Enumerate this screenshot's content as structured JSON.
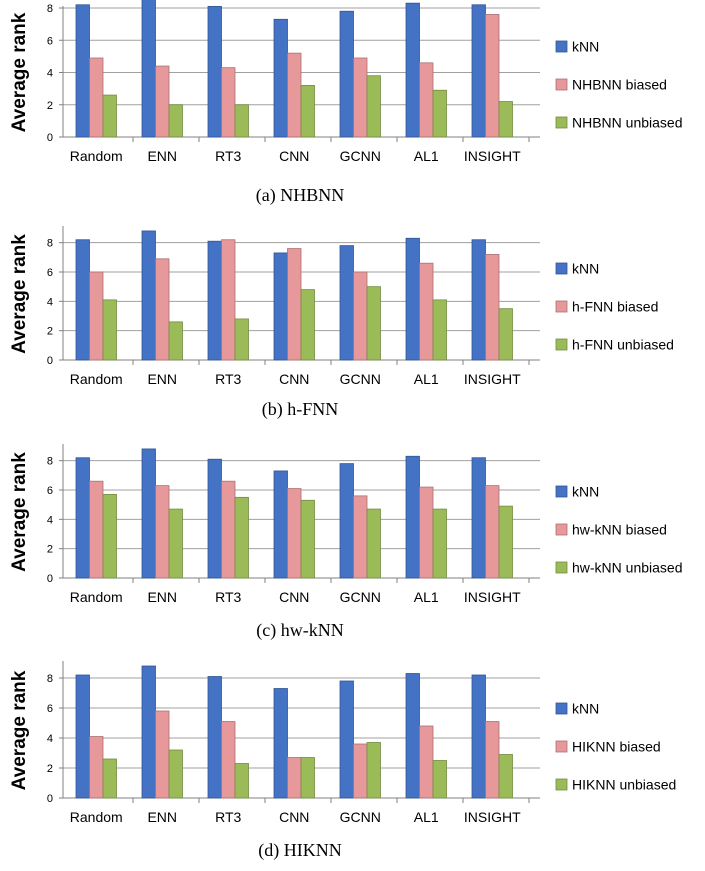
{
  "chart_data": [
    {
      "type": "bar",
      "caption": "(a) NHBNN",
      "ylabel": "Average rank",
      "ylim": [
        0,
        8
      ],
      "yticks": [
        0,
        2,
        4,
        6,
        8
      ],
      "categories": [
        "Random",
        "ENN",
        "RT3",
        "CNN",
        "GCNN",
        "AL1",
        "INSIGHT"
      ],
      "series": [
        {
          "name": "kNN",
          "color": "#4472C4",
          "values": [
            8.2,
            8.8,
            8.1,
            7.3,
            7.8,
            8.3,
            8.2
          ]
        },
        {
          "name": "NHBNN biased",
          "color": "#E6989A",
          "values": [
            4.9,
            4.4,
            4.3,
            5.2,
            4.9,
            4.6,
            7.6
          ]
        },
        {
          "name": "NHBNN unbiased",
          "color": "#9BBB59",
          "values": [
            2.6,
            2.0,
            2.0,
            3.2,
            3.8,
            2.9,
            2.2
          ]
        }
      ],
      "legend": "right",
      "grid": true
    },
    {
      "type": "bar",
      "caption": "(b) h-FNN",
      "ylabel": "Average rank",
      "ylim": [
        0,
        9
      ],
      "yticks": [
        0,
        2,
        4,
        6,
        8
      ],
      "categories": [
        "Random",
        "ENN",
        "RT3",
        "CNN",
        "GCNN",
        "AL1",
        "INSIGHT"
      ],
      "series": [
        {
          "name": "kNN",
          "color": "#4472C4",
          "values": [
            8.2,
            8.8,
            8.1,
            7.3,
            7.8,
            8.3,
            8.2
          ]
        },
        {
          "name": "h-FNN biased",
          "color": "#E6989A",
          "values": [
            6.0,
            6.9,
            8.2,
            7.6,
            6.0,
            6.6,
            7.2
          ]
        },
        {
          "name": "h-FNN unbiased",
          "color": "#9BBB59",
          "values": [
            4.1,
            2.6,
            2.8,
            4.8,
            5.0,
            4.1,
            3.5
          ]
        }
      ],
      "legend": "right",
      "grid": true
    },
    {
      "type": "bar",
      "caption": "(c) hw-kNN",
      "ylabel": "Average rank",
      "ylim": [
        0,
        9
      ],
      "yticks": [
        0,
        2,
        4,
        6,
        8
      ],
      "categories": [
        "Random",
        "ENN",
        "RT3",
        "CNN",
        "GCNN",
        "AL1",
        "INSIGHT"
      ],
      "series": [
        {
          "name": "kNN",
          "color": "#4472C4",
          "values": [
            8.2,
            8.8,
            8.1,
            7.3,
            7.8,
            8.3,
            8.2
          ]
        },
        {
          "name": "hw-kNN biased",
          "color": "#E6989A",
          "values": [
            6.6,
            6.3,
            6.6,
            6.1,
            5.6,
            6.2,
            6.3
          ]
        },
        {
          "name": "hw-kNN unbiased",
          "color": "#9BBB59",
          "values": [
            5.7,
            4.7,
            5.5,
            5.3,
            4.7,
            4.7,
            4.9
          ]
        }
      ],
      "legend": "right",
      "grid": true
    },
    {
      "type": "bar",
      "caption": "(d) HIKNN",
      "ylabel": "Average rank",
      "ylim": [
        0,
        9
      ],
      "yticks": [
        0,
        2,
        4,
        6,
        8
      ],
      "categories": [
        "Random",
        "ENN",
        "RT3",
        "CNN",
        "GCNN",
        "AL1",
        "INSIGHT"
      ],
      "series": [
        {
          "name": "kNN",
          "color": "#4472C4",
          "values": [
            8.2,
            8.8,
            8.1,
            7.3,
            7.8,
            8.3,
            8.2
          ]
        },
        {
          "name": "HIKNN biased",
          "color": "#E6989A",
          "values": [
            4.1,
            5.8,
            5.1,
            2.7,
            3.6,
            4.8,
            5.1
          ]
        },
        {
          "name": "HIKNN unbiased",
          "color": "#9BBB59",
          "values": [
            2.6,
            3.2,
            2.3,
            2.7,
            3.7,
            2.5,
            2.9
          ]
        }
      ],
      "legend": "right",
      "grid": true
    }
  ]
}
